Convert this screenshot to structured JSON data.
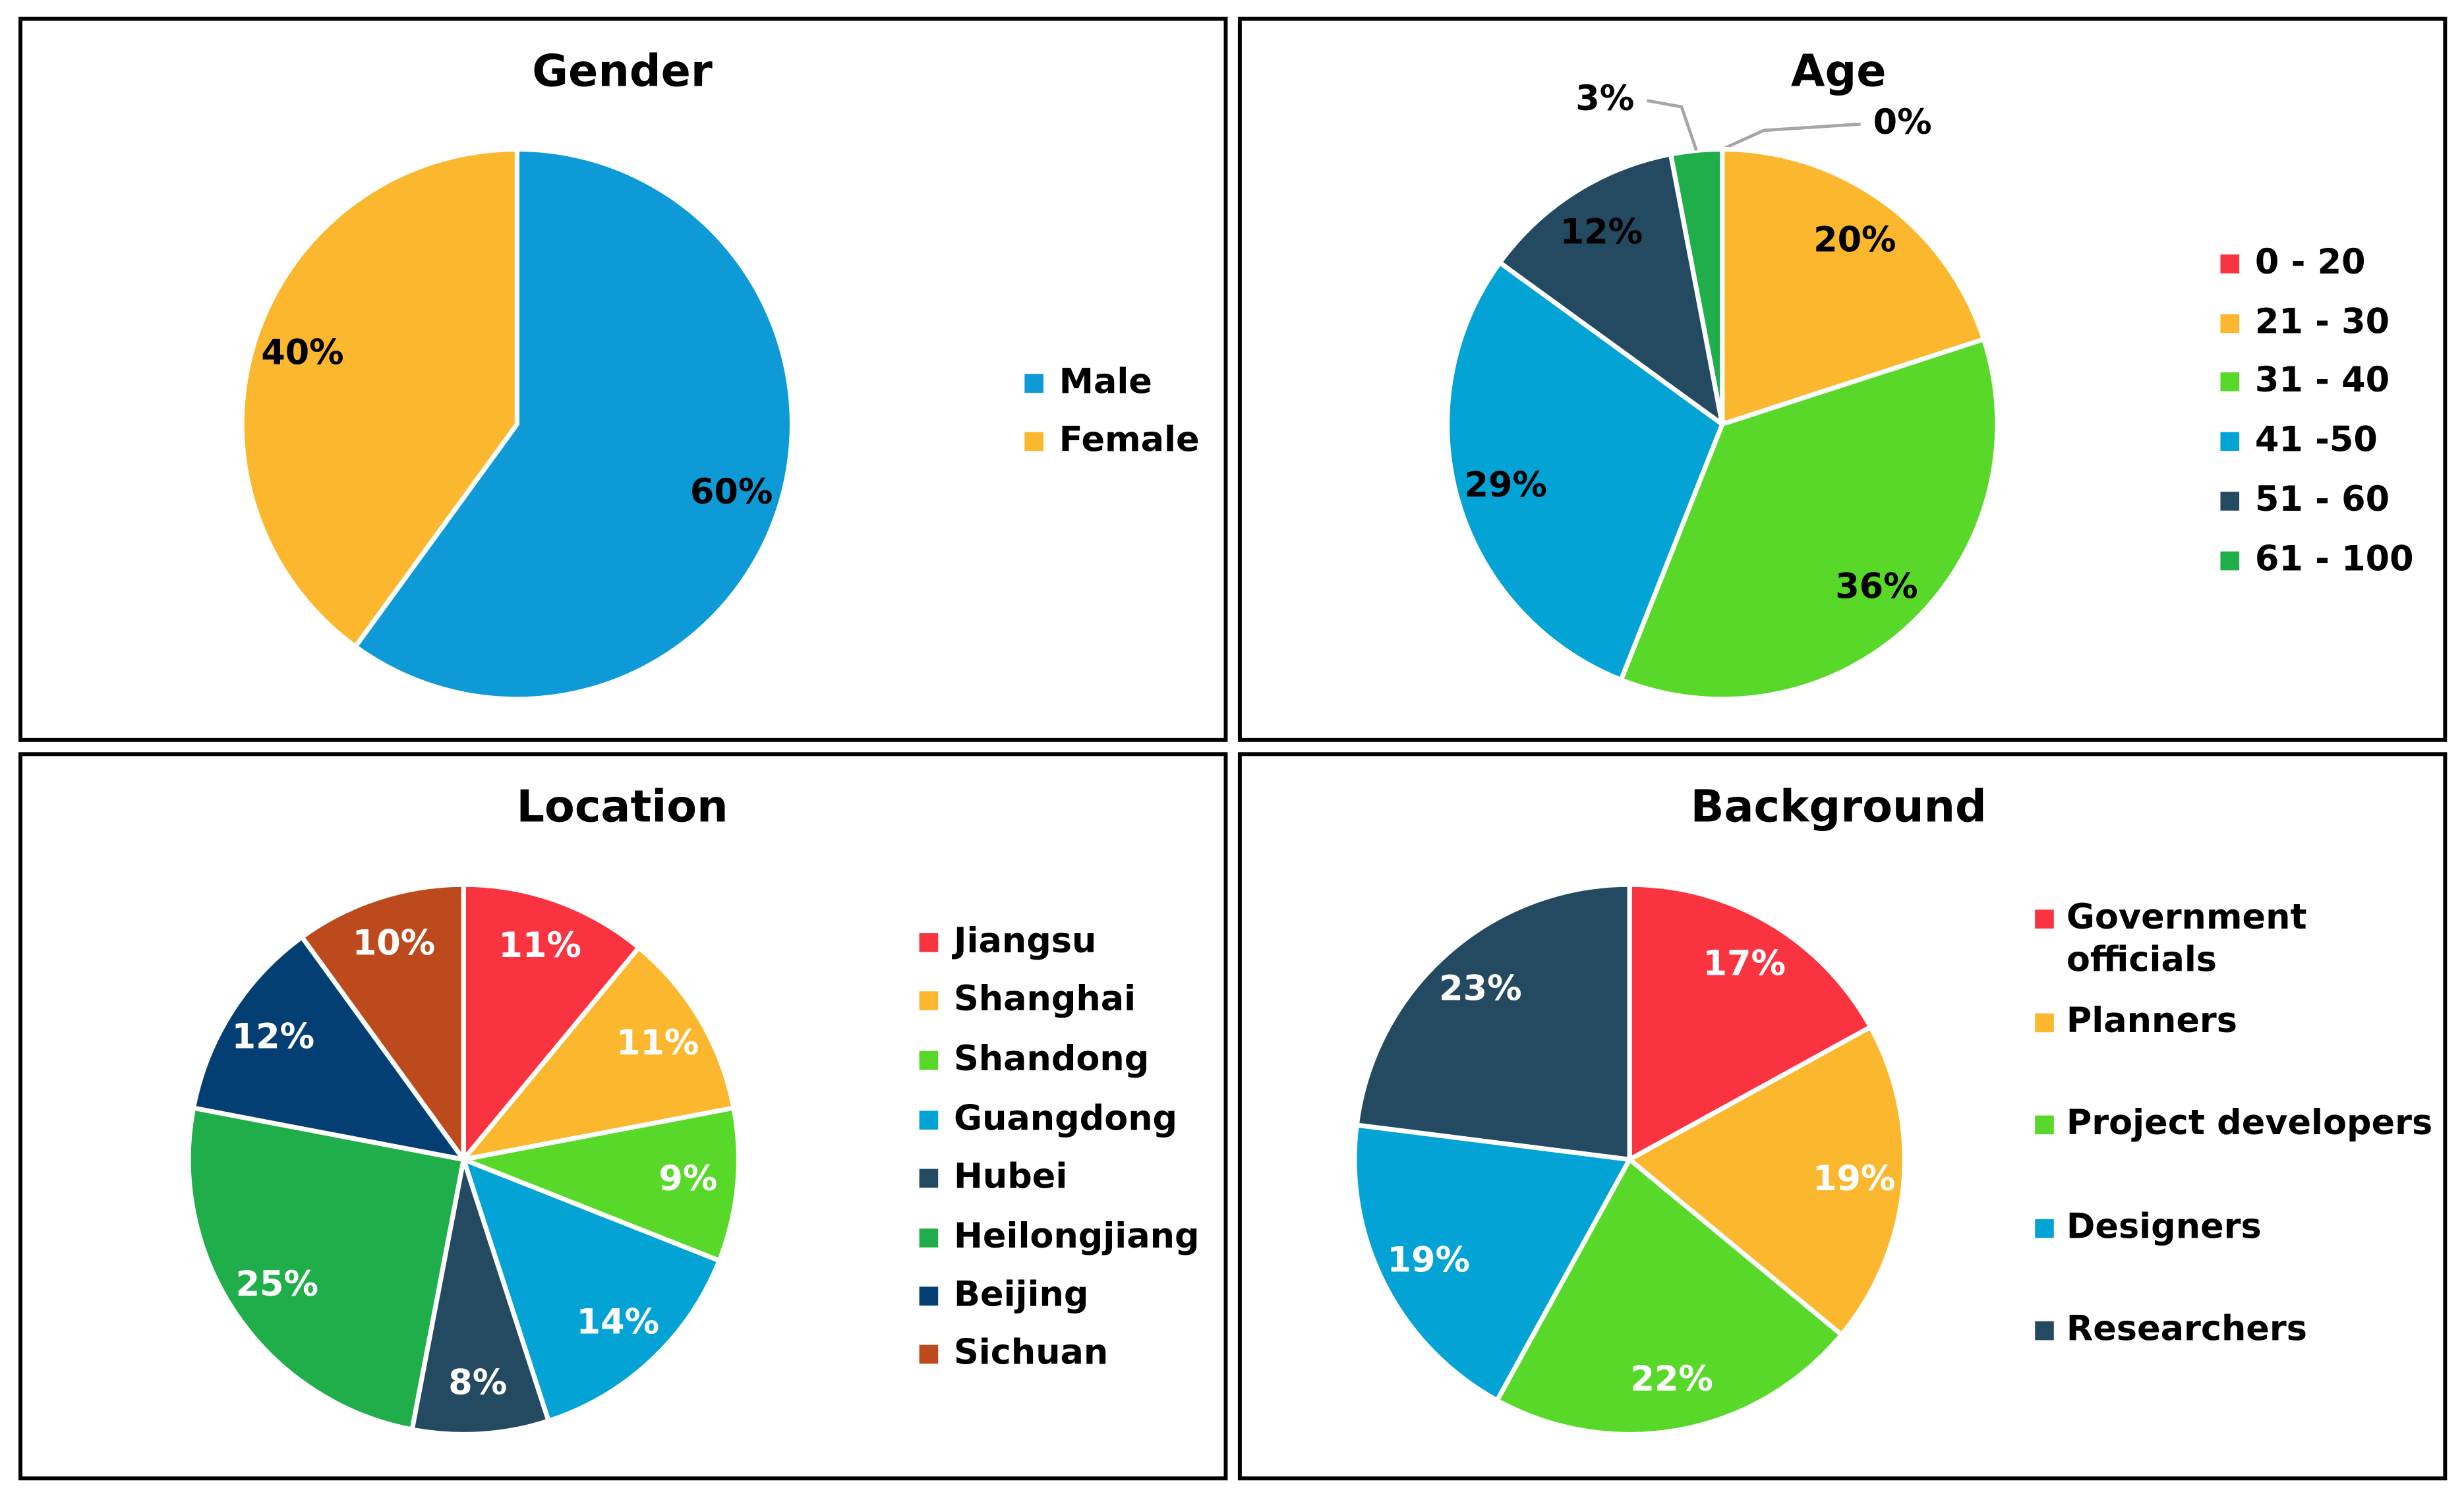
{
  "chart_data": [
    {
      "type": "pie",
      "title": "Gender",
      "categories": [
        "Male",
        "Female"
      ],
      "values": [
        60,
        40
      ],
      "value_labels": [
        "60%",
        "40%"
      ],
      "colors": [
        "#0e9ad6",
        "#fbb72e"
      ]
    },
    {
      "type": "pie",
      "title": "Age",
      "categories": [
        "0 - 20",
        "21 - 30",
        "31 - 40",
        "41 -50",
        "51 - 60",
        "61 - 100"
      ],
      "values": [
        0,
        20,
        36,
        29,
        12,
        3
      ],
      "value_labels": [
        "0%",
        "20%",
        "36%",
        "29%",
        "12%",
        "3%"
      ],
      "colors": [
        "#f9333f",
        "#fbb72e",
        "#58d92a",
        "#03a3d5",
        "#244a61",
        "#1fae4a"
      ]
    },
    {
      "type": "pie",
      "title": "Location",
      "categories": [
        "Jiangsu",
        "Shanghai",
        "Shandong",
        "Guangdong",
        "Hubei",
        "Heilongjiang",
        "Beijing",
        "Sichuan"
      ],
      "values": [
        11,
        11,
        9,
        14,
        8,
        25,
        12,
        10
      ],
      "value_labels": [
        "11%",
        "11%",
        "9%",
        "14%",
        "8%",
        "25%",
        "12%",
        "10%"
      ],
      "colors": [
        "#f9333f",
        "#fbb72e",
        "#58d92a",
        "#03a3d5",
        "#244a61",
        "#1fae4a",
        "#043f73",
        "#bc4a1c"
      ]
    },
    {
      "type": "pie",
      "title": "Background",
      "categories": [
        "Government officials",
        "Planners",
        "Project developers",
        "Designers",
        "Researchers"
      ],
      "values": [
        17,
        19,
        22,
        19,
        23
      ],
      "value_labels": [
        "17%",
        "19%",
        "22%",
        "19%",
        "23%"
      ],
      "colors": [
        "#f9333f",
        "#fbb72e",
        "#58d92a",
        "#03a3d5",
        "#244a61"
      ]
    }
  ]
}
